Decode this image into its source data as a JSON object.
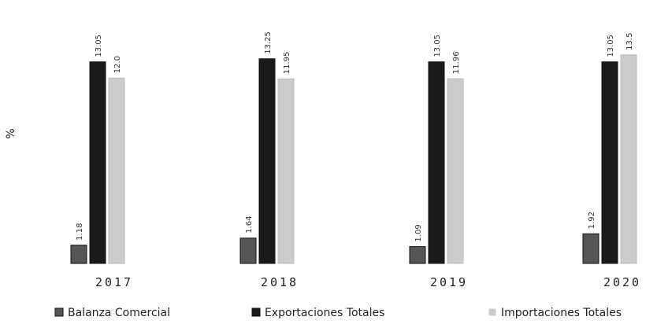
{
  "chart_data": {
    "type": "bar",
    "ylabel": "%",
    "categories": [
      "2017",
      "2018",
      "2019",
      "2020"
    ],
    "series": [
      {
        "name": "Balanza Comercial",
        "values": [
          1.18,
          1.64,
          1.09,
          1.92
        ],
        "color": "#555555"
      },
      {
        "name": "Exportaciones Totales",
        "values": [
          13.05,
          13.25,
          13.05,
          13.05
        ],
        "color": "#1a1a1a"
      },
      {
        "name": "Importaciones Totales",
        "values": [
          12.0,
          11.95,
          11.96,
          13.5
        ],
        "color": "#cccccc"
      }
    ],
    "data_labels": [
      [
        "1.18",
        "13.05",
        "12.0"
      ],
      [
        "1.64",
        "13.25",
        "11.95"
      ],
      [
        "1.09",
        "13.05",
        "11.96"
      ],
      [
        "1.92",
        "13.05",
        "13.5"
      ]
    ],
    "ylim": [
      0,
      14
    ],
    "grid": false,
    "legend_position": "bottom"
  }
}
